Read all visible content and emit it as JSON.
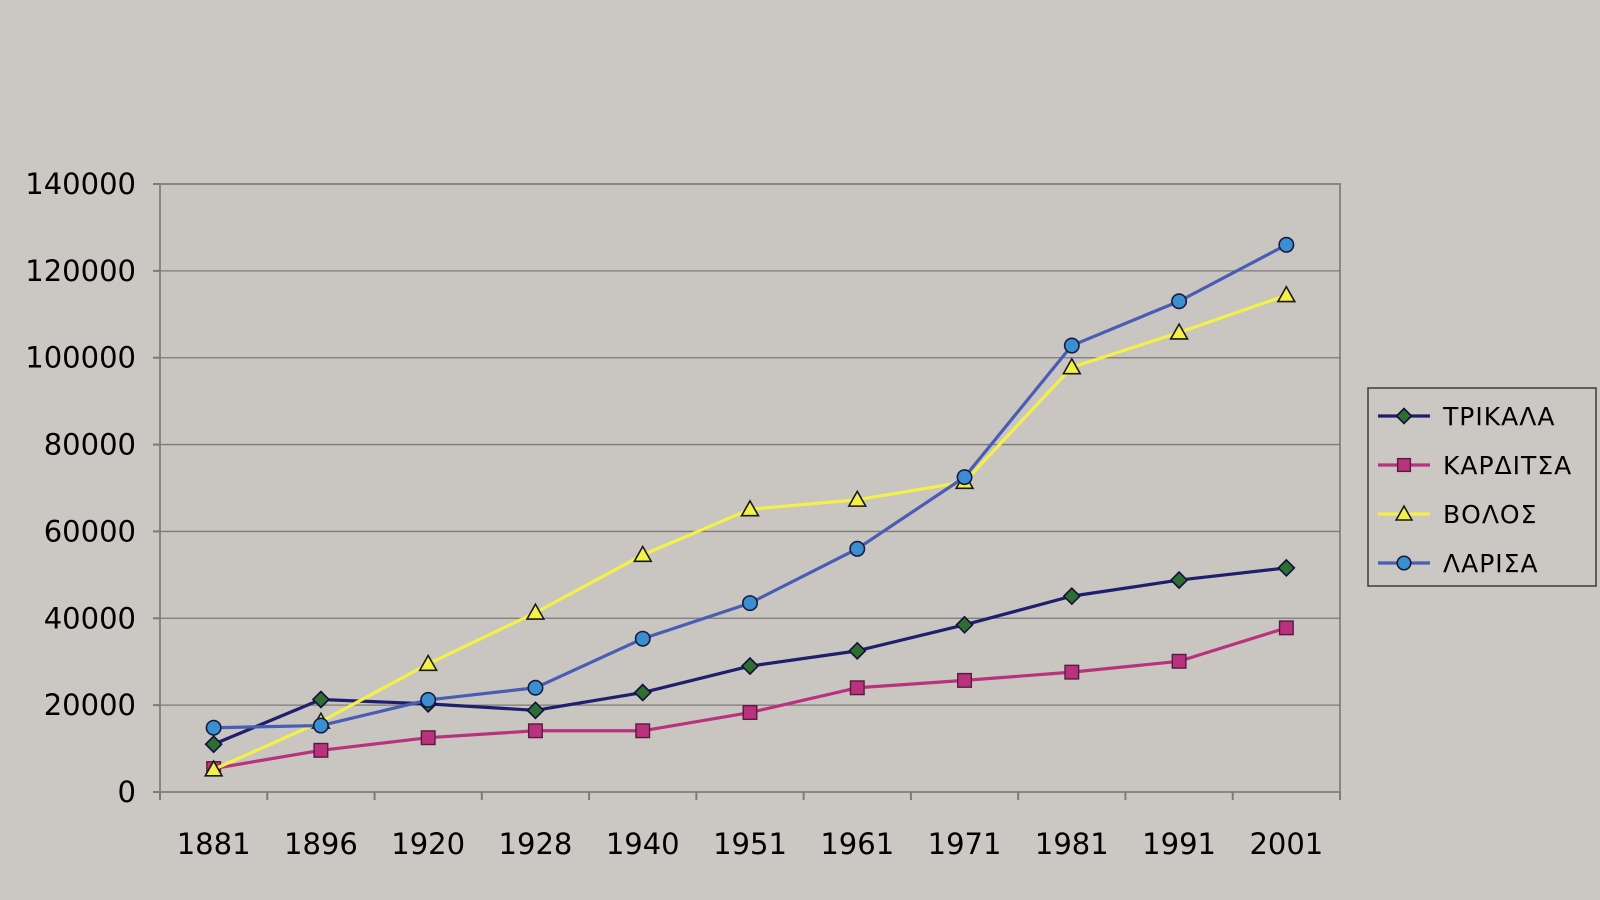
{
  "chart_data": {
    "type": "line",
    "title": "",
    "xlabel": "",
    "ylabel": "",
    "categories": [
      "1881",
      "1896",
      "1920",
      "1928",
      "1940",
      "1951",
      "1961",
      "1971",
      "1981",
      "1991",
      "2001"
    ],
    "ylim": [
      0,
      140000
    ],
    "yticks": [
      0,
      20000,
      40000,
      60000,
      80000,
      100000,
      120000,
      140000
    ],
    "ytick_labels": [
      "0",
      "20000",
      "40000",
      "60000",
      "80000",
      "100000",
      "120000",
      "140000"
    ],
    "grid": "horizontal",
    "legend_position": "right",
    "series": [
      {
        "name": "ΤΡΙΚΑΛΑ",
        "color": "#1f1f6e",
        "marker": "diamond",
        "marker_color": "#2e6e2e",
        "values": [
          11000,
          21300,
          20300,
          18800,
          22900,
          29000,
          32500,
          38500,
          45100,
          48800,
          51600
        ]
      },
      {
        "name": "ΚΑΡΔΙΤΣΑ",
        "color": "#b8327e",
        "marker": "square",
        "marker_color": "#b8327e",
        "values": [
          5400,
          9600,
          12500,
          14100,
          14100,
          18300,
          24000,
          25700,
          27600,
          30100,
          37800
        ]
      },
      {
        "name": "ΒΟΛΟΣ",
        "color": "#f3f04a",
        "marker": "triangle",
        "marker_color": "#f3f04a",
        "values": [
          5200,
          16200,
          29500,
          41300,
          54600,
          65100,
          67300,
          71400,
          97800,
          105800,
          114400
        ]
      },
      {
        "name": "ΛΑΡΙΣΑ",
        "color": "#4a5db4",
        "marker": "circle",
        "marker_color": "#3a8fd0",
        "values": [
          14800,
          15300,
          21200,
          24000,
          35300,
          43500,
          56000,
          72500,
          102800,
          113000,
          126000
        ]
      }
    ]
  }
}
